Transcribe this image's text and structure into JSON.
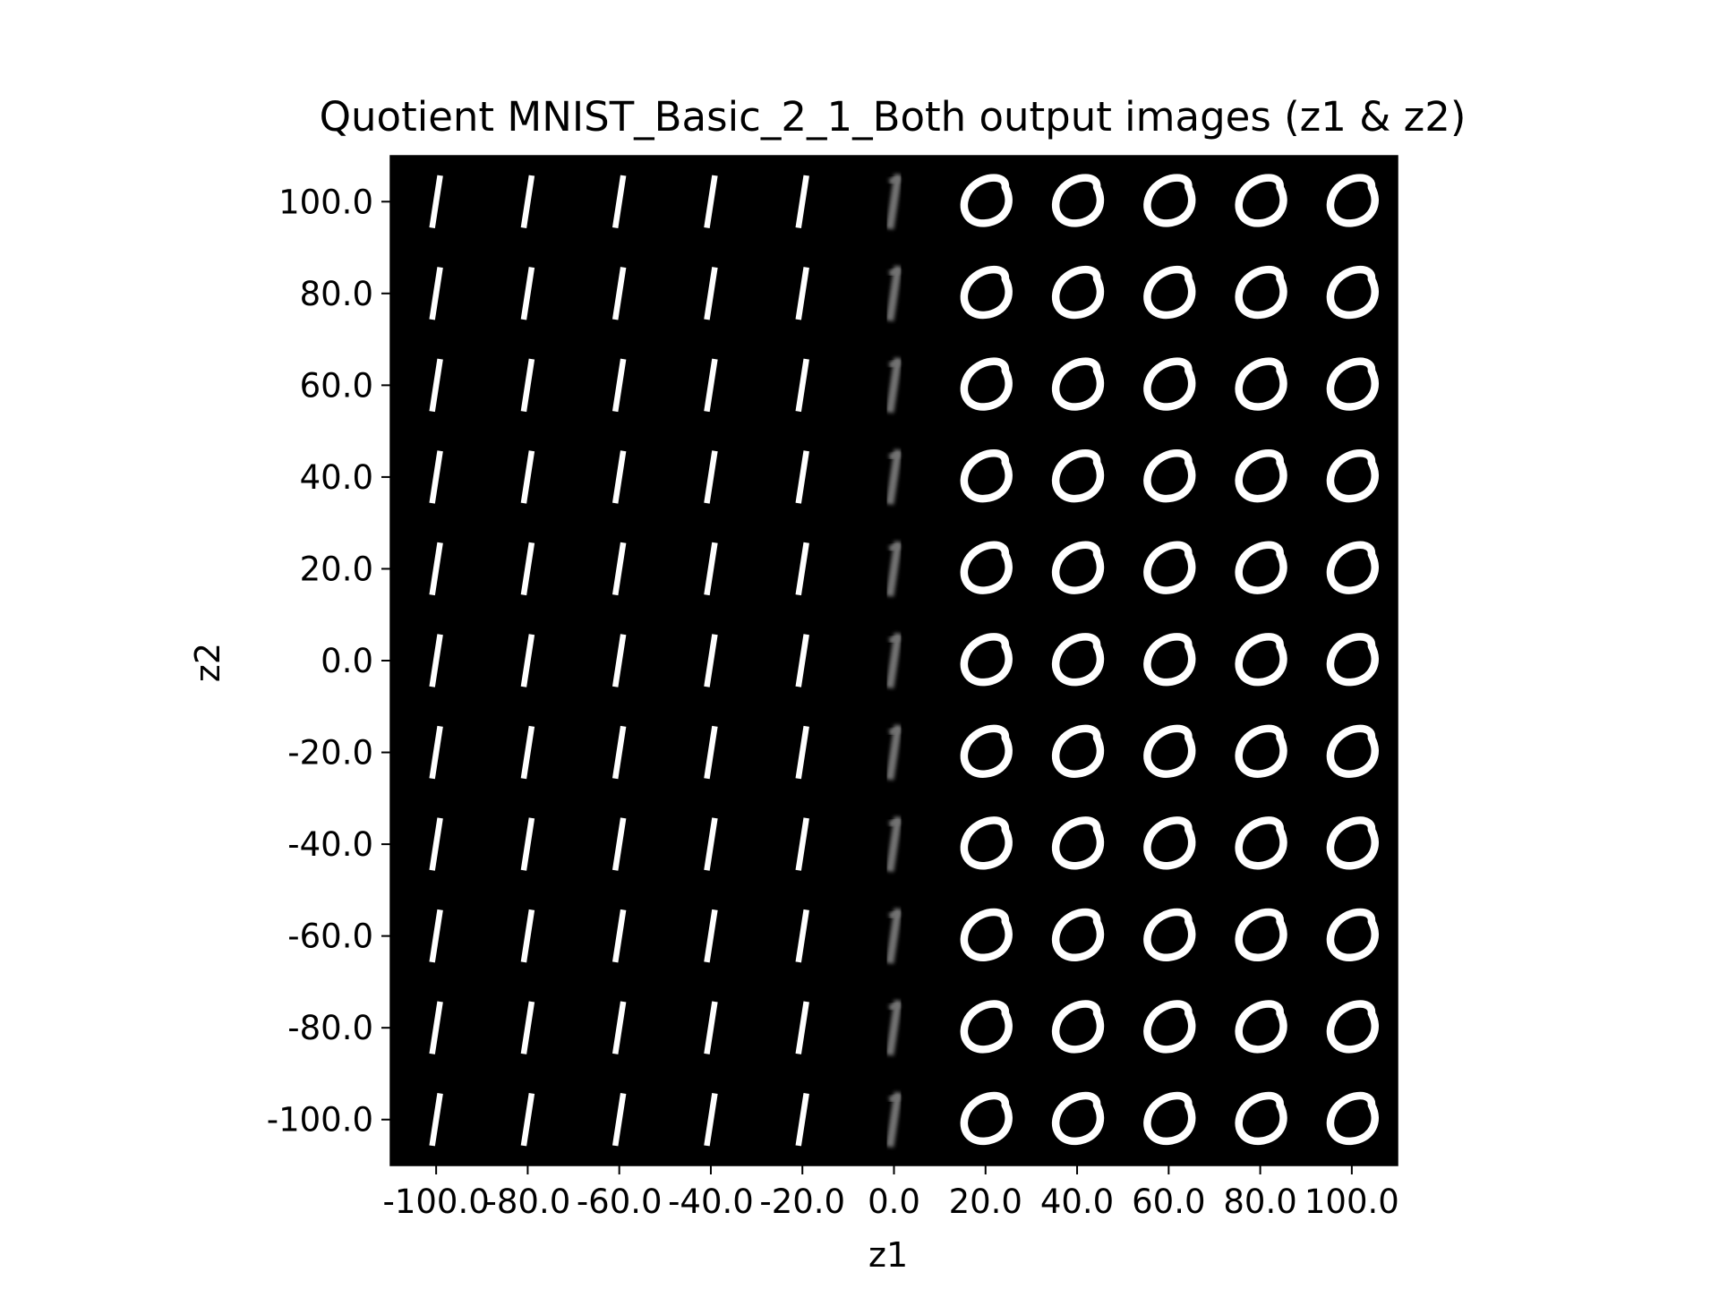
{
  "chart_data": {
    "type": "heatmap",
    "title": "Quotient MNIST_Basic_2_1_Both output images (z1 & z2)",
    "xlabel": "z1",
    "ylabel": "z2",
    "xticks": [
      "-100.0",
      "-80.0",
      "-60.0",
      "-40.0",
      "-20.0",
      "0.0",
      "20.0",
      "40.0",
      "60.0",
      "80.0",
      "100.0"
    ],
    "yticks": [
      "100.0",
      "80.0",
      "60.0",
      "40.0",
      "20.0",
      "0.0",
      "-20.0",
      "-40.0",
      "-60.0",
      "-80.0",
      "-100.0"
    ],
    "x_values": [
      -100,
      -80,
      -60,
      -40,
      -20,
      0,
      20,
      40,
      60,
      80,
      100
    ],
    "y_values": [
      100,
      80,
      60,
      40,
      20,
      0,
      -20,
      -40,
      -60,
      -80,
      -100
    ],
    "xlim": [
      -110,
      110
    ],
    "ylim": [
      -110,
      110
    ],
    "grid": false,
    "background_color": "#000000",
    "colormap": "gray",
    "cell_digits_by_column": [
      "1",
      "1",
      "1",
      "1",
      "1",
      "1",
      "0",
      "0",
      "0",
      "0",
      "0"
    ],
    "cell_intensity_by_column": [
      1.0,
      1.0,
      1.0,
      1.0,
      1.0,
      0.45,
      1.0,
      1.0,
      1.0,
      1.0,
      1.0
    ]
  }
}
